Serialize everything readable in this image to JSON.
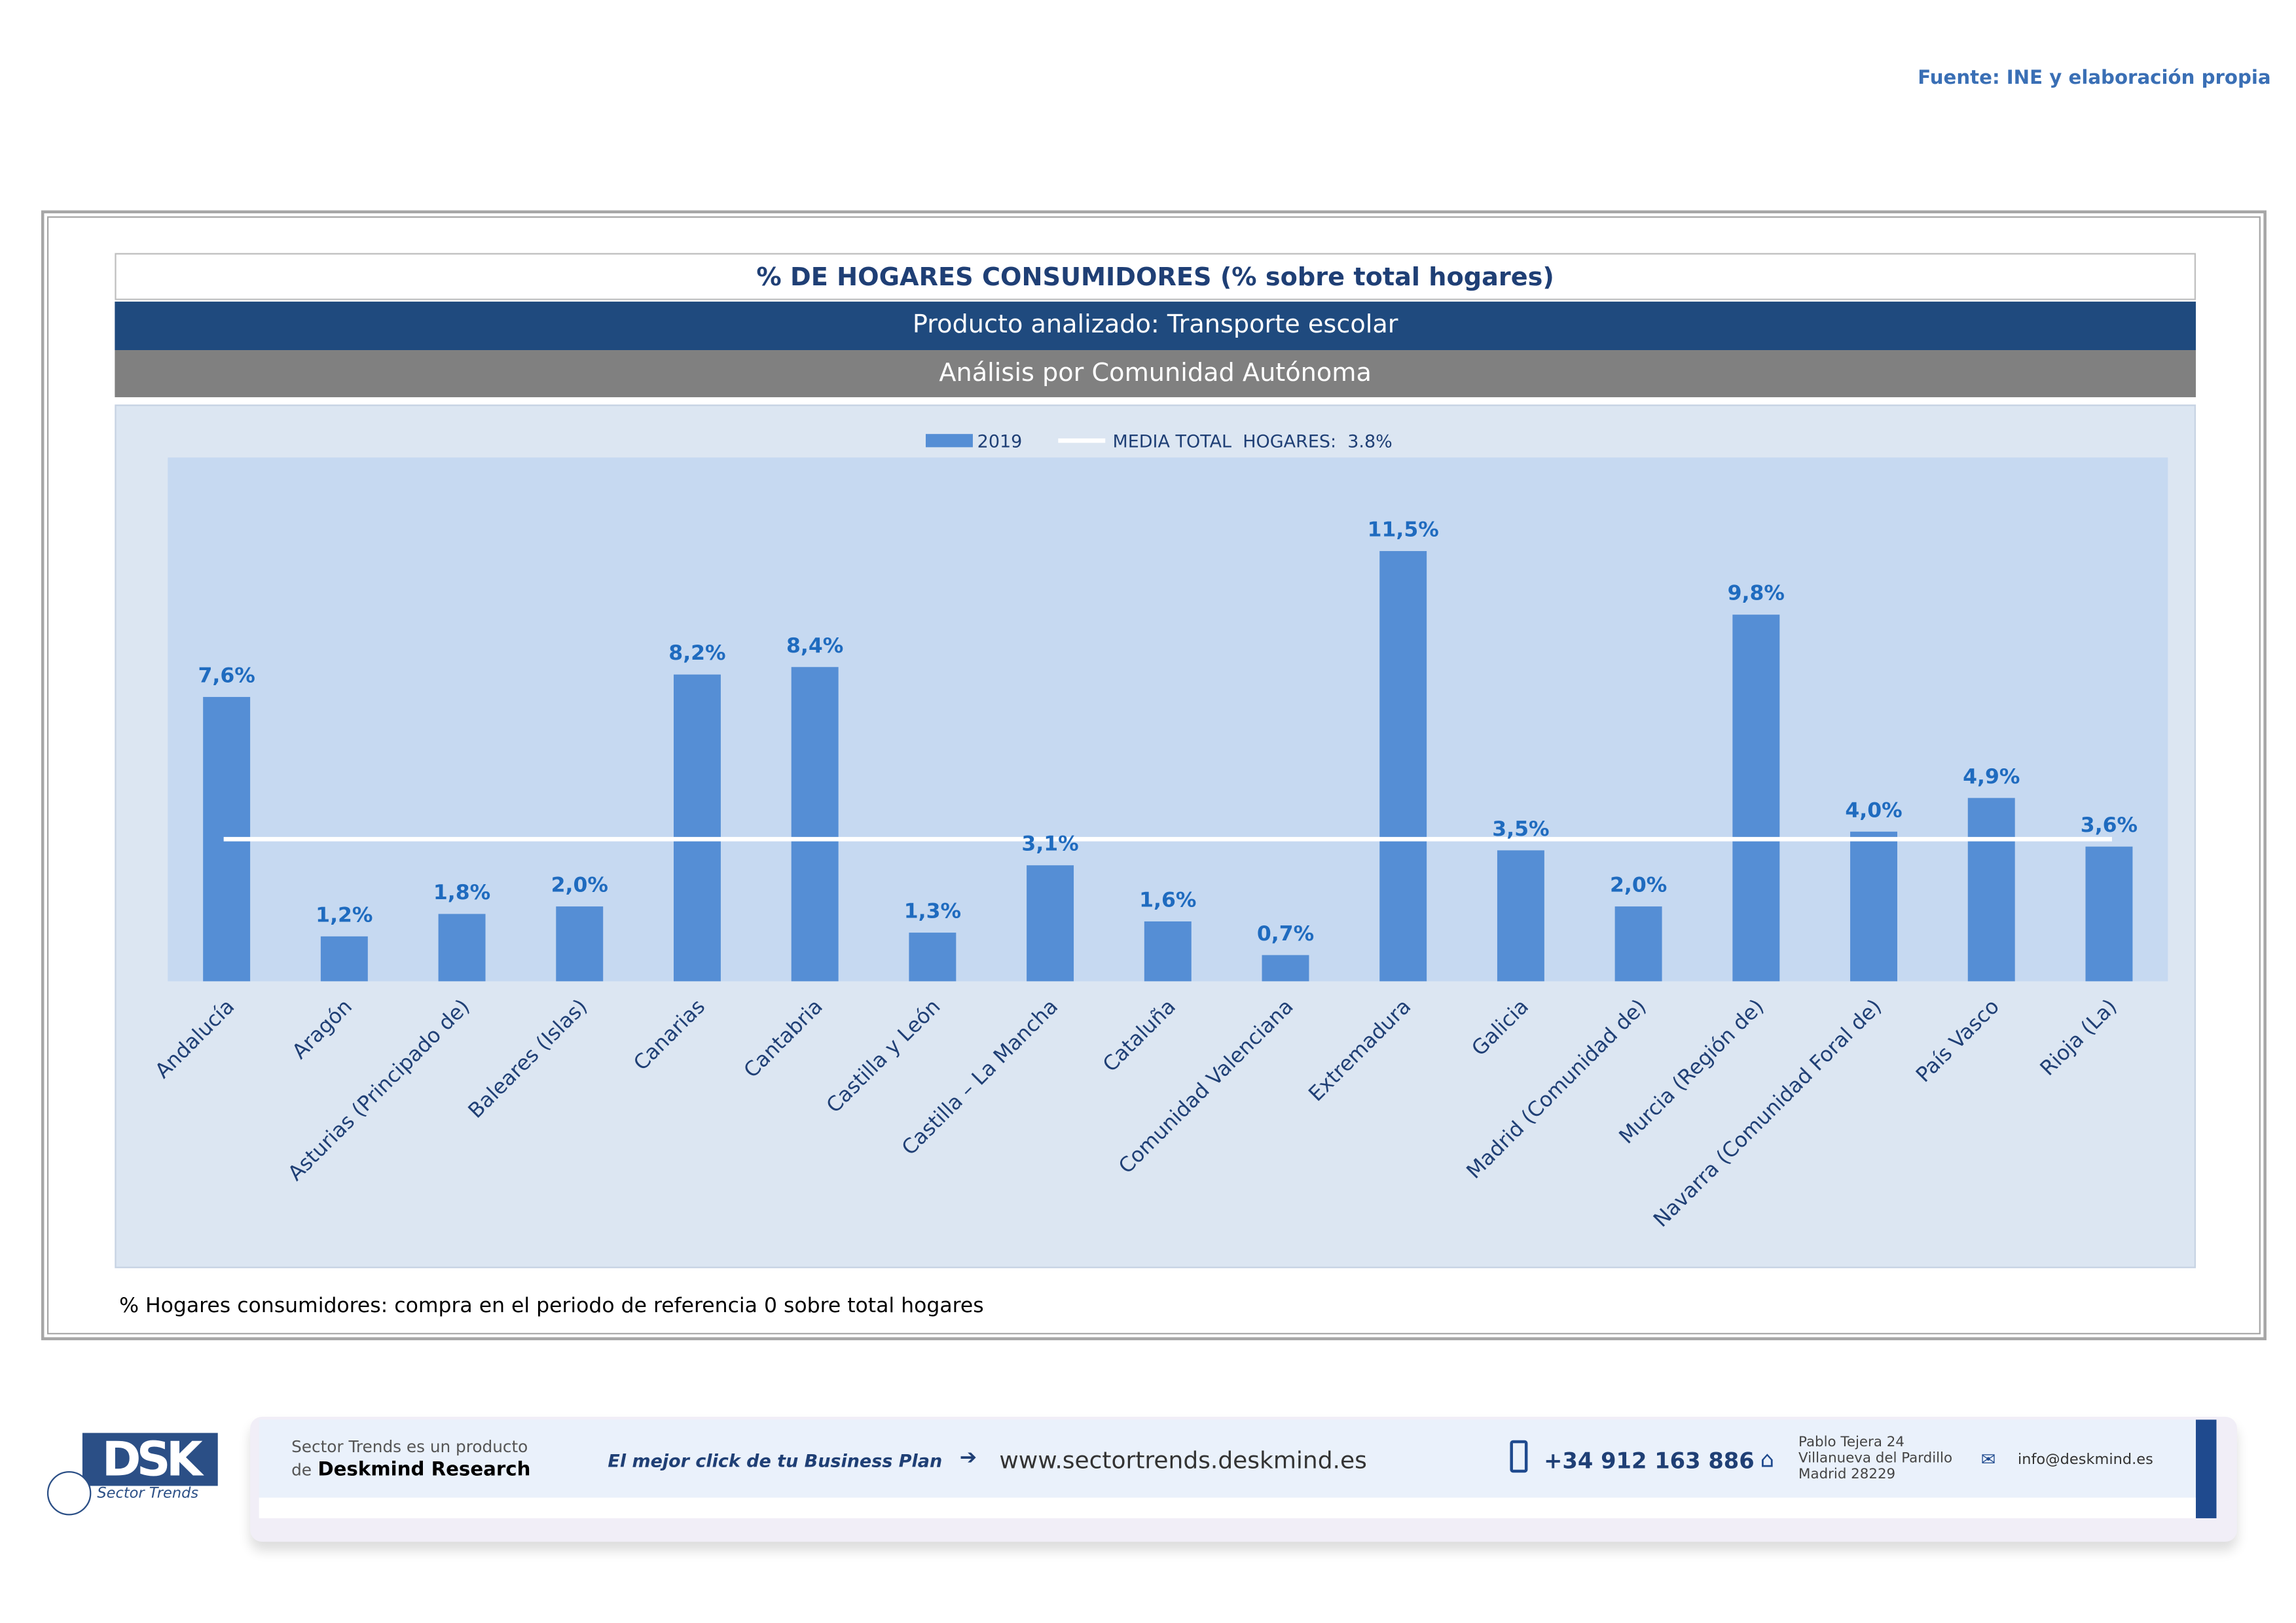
{
  "source": "Fuente: INE y elaboración propia",
  "header": {
    "title": "% DE HOGARES CONSUMIDORES (% sobre total hogares)",
    "product": "Producto analizado: Transporte escolar",
    "analysis": "Análisis por Comunidad Autónoma"
  },
  "note": "% Hogares consumidores: compra en el periodo de referencia 0 sobre total hogares",
  "colors": {
    "bar": "#558ed5",
    "label": "#1f6bbf",
    "mean": "#ffffff",
    "plot_bg": "#c6d9f1"
  },
  "chart_data": {
    "type": "bar",
    "title": "% DE HOGARES CONSUMIDORES (% sobre total hogares)",
    "categories": [
      "Andalucía",
      "Aragón",
      "Asturias (Principado de)",
      "Baleares (Islas)",
      "Canarias",
      "Cantabria",
      "Castilla y León",
      "Castilla – La Mancha",
      "Cataluña",
      "Comunidad Valenciana",
      "Extremadura",
      "Galicia",
      "Madrid (Comunidad de)",
      "Murcia (Región de)",
      "Navarra (Comunidad Foral de)",
      "País Vasco",
      "Rioja (La)"
    ],
    "series": [
      {
        "name": "2019",
        "values": [
          7.6,
          1.2,
          1.8,
          2.0,
          8.2,
          8.4,
          1.3,
          3.1,
          1.6,
          0.7,
          11.5,
          3.5,
          2.0,
          9.8,
          4.0,
          4.9,
          3.6
        ]
      }
    ],
    "data_labels": [
      "7,6%",
      "1,2%",
      "1,8%",
      "2,0%",
      "8,2%",
      "8,4%",
      "1,3%",
      "3,1%",
      "1,6%",
      "0,7%",
      "11,5%",
      "3,5%",
      "2,0%",
      "9,8%",
      "4,0%",
      "4,9%",
      "3,6%"
    ],
    "mean": {
      "label": "MEDIA TOTAL  HOGARES:  3.8%",
      "value": 3.8
    },
    "legend": [
      "2019",
      "MEDIA TOTAL  HOGARES:  3.8%"
    ],
    "legend_position": "top",
    "ylim": [
      0,
      14
    ],
    "grid": false
  },
  "footer": {
    "line1": "Sector Trends es un producto",
    "line2_prefix": "de",
    "line2_brand": "Deskmind Research",
    "slogan": "El mejor click de tu Business Plan",
    "website": "www.sectortrends.deskmind.es",
    "phone": "+34 912 163 886",
    "address": [
      "Pablo Tejera 24",
      "Villanueva del Pardillo",
      "Madrid 28229"
    ],
    "email": "info@deskmind.es",
    "logo_text": "DSK",
    "logo_sub": "Sector Trends"
  }
}
